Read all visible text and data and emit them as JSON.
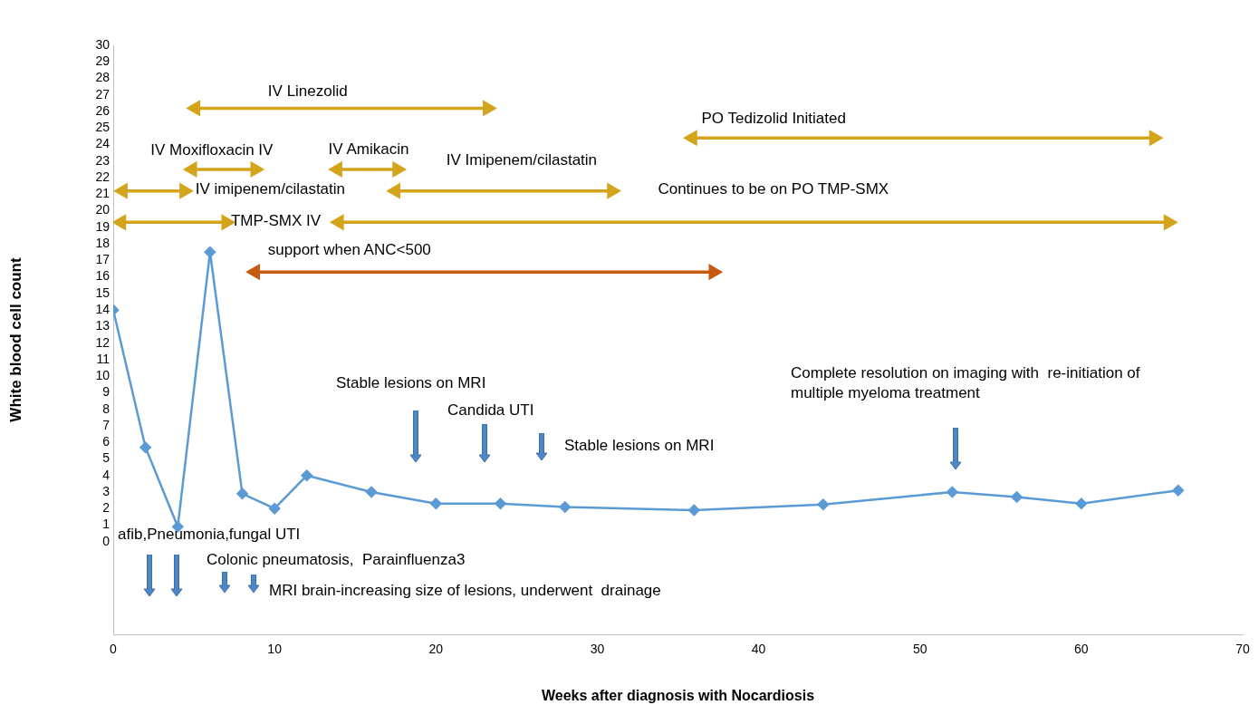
{
  "chart_data": {
    "type": "line",
    "xlabel": "Weeks after diagnosis with Nocardiosis",
    "ylabel": "White blood cell count",
    "xlim": [
      0,
      70
    ],
    "xticks": [
      0,
      10,
      20,
      30,
      40,
      50,
      60,
      70
    ],
    "ylim": [
      -5.6,
      30
    ],
    "yticks": [
      0,
      1,
      2,
      3,
      4,
      5,
      6,
      7,
      8,
      9,
      10,
      11,
      12,
      13,
      14,
      15,
      16,
      17,
      18,
      19,
      20,
      21,
      22,
      23,
      24,
      25,
      26,
      27,
      28,
      29,
      30
    ],
    "grid": false,
    "legend": false,
    "marker": "diamond",
    "series": [
      {
        "color": "#5b9bd5",
        "x": [
          0,
          2,
          4,
          6,
          8,
          10,
          12,
          16,
          20,
          24,
          28,
          36,
          44,
          52,
          56,
          60,
          66
        ],
        "values": [
          14,
          5.7,
          0.9,
          17.5,
          2.9,
          2,
          4,
          3,
          2.3,
          2.3,
          2.1,
          1.9,
          2.25,
          3,
          2.7,
          2.3,
          3.1
        ]
      },
      {
        "name": "IV Linezolid",
        "color": "#d4a51c",
        "marker": "triangle",
        "x": [
          5.1,
          23.2
        ],
        "values": [
          26.2,
          26.2
        ]
      },
      {
        "name": "PO Tedizolid Initiated",
        "color": "#d4a51c",
        "marker": "triangle",
        "x": [
          35.9,
          64.5
        ],
        "values": [
          24.4,
          24.4
        ]
      },
      {
        "name": "IV Moxifloxacin IV",
        "color": "#d4a51c",
        "marker": "triangle",
        "x": [
          4.9,
          8.8
        ],
        "values": [
          22.5,
          22.5
        ]
      },
      {
        "name": "IV Amikacin",
        "color": "#d4a51c",
        "marker": "triangle",
        "x": [
          13.9,
          17.6
        ],
        "values": [
          22.5,
          22.5
        ]
      },
      {
        "name": "IV imipenem/cilastatin",
        "color": "#d4a51c",
        "marker": "triangle",
        "x": [
          0.6,
          4.4
        ],
        "values": [
          21.2,
          21.2
        ]
      },
      {
        "name": "IV Imipenem/cilastatin",
        "color": "#d4a51c",
        "marker": "triangle",
        "x": [
          17.5,
          30.9
        ],
        "values": [
          21.2,
          21.2
        ]
      },
      {
        "name": "TMP-SMX IV",
        "color": "#d4a51c",
        "marker": "triangle",
        "x": [
          0.5,
          7.0
        ],
        "values": [
          19.3,
          19.3
        ]
      },
      {
        "name": "Continues to be on PO TMP-SMX",
        "color": "#d4a51c",
        "marker": "triangle",
        "x": [
          14.0,
          65.4
        ],
        "values": [
          19.3,
          19.3
        ]
      },
      {
        "name": "support when ANC<500",
        "color": "#c55a11",
        "marker": "triangle",
        "x": [
          8.8,
          37.2
        ],
        "values": [
          16.3,
          16.3
        ]
      }
    ],
    "annotations": [
      "Stable lesions on MRI",
      "Candida UTI",
      "Stable lesions on MRI",
      "Complete resolution on imaging with  re-initiation of multiple myeloma treatment",
      "afib,Pneumonia,fungal UTI",
      "Colonic pneumatosis,  Parainfluenza3",
      "MRI brain-increasing size of lesions, underwent  drainage"
    ]
  }
}
